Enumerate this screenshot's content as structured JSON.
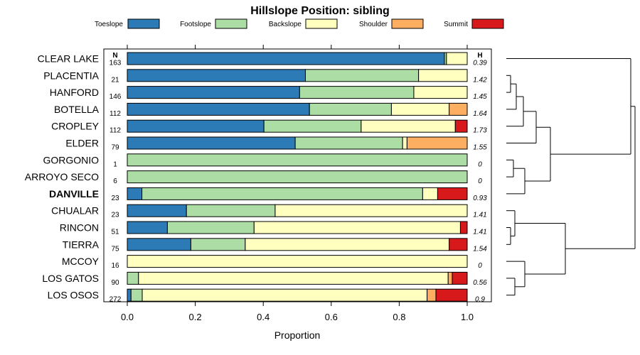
{
  "chart_data": {
    "type": "bar",
    "stacked": true,
    "orientation": "horizontal",
    "title": "Hillslope Position: sibling",
    "xlabel": "Proportion",
    "xlim": [
      0,
      1
    ],
    "x_ticks": [
      "0.0",
      "0.2",
      "0.4",
      "0.6",
      "0.8",
      "1.0"
    ],
    "n_header": "N",
    "h_header": "H",
    "highlight": "DANVILLE",
    "series": [
      {
        "name": "Toeslope",
        "color": "#2c7bb6"
      },
      {
        "name": "Footslope",
        "color": "#abdda4"
      },
      {
        "name": "Backslope",
        "color": "#ffffbf"
      },
      {
        "name": "Shoulder",
        "color": "#fdae61"
      },
      {
        "name": "Summit",
        "color": "#d7191c"
      }
    ],
    "rows": [
      {
        "label": "CLEAR LAKE",
        "n": "163",
        "h": "0.39",
        "values": [
          0.933,
          0.006,
          0.061,
          0,
          0
        ]
      },
      {
        "label": "PLACENTIA",
        "n": "21",
        "h": "1.42",
        "values": [
          0.524,
          0.333,
          0.143,
          0,
          0
        ]
      },
      {
        "label": "HANFORD",
        "n": "146",
        "h": "1.45",
        "values": [
          0.507,
          0.336,
          0.157,
          0,
          0
        ]
      },
      {
        "label": "BOTELLA",
        "n": "112",
        "h": "1.64",
        "values": [
          0.536,
          0.241,
          0.17,
          0.053,
          0
        ]
      },
      {
        "label": "CROPLEY",
        "n": "112",
        "h": "1.73",
        "values": [
          0.402,
          0.286,
          0.277,
          0,
          0.035
        ]
      },
      {
        "label": "ELDER",
        "n": "79",
        "h": "1.55",
        "values": [
          0.494,
          0.316,
          0.013,
          0.177,
          0
        ]
      },
      {
        "label": "GORGONIO",
        "n": "1",
        "h": "0",
        "values": [
          0,
          1,
          0,
          0,
          0
        ]
      },
      {
        "label": "ARROYO SECO",
        "n": "6",
        "h": "0",
        "values": [
          0,
          1,
          0,
          0,
          0
        ]
      },
      {
        "label": "DANVILLE",
        "n": "23",
        "h": "0.93",
        "values": [
          0.043,
          0.826,
          0.044,
          0,
          0.087
        ]
      },
      {
        "label": "CHUALAR",
        "n": "23",
        "h": "1.41",
        "values": [
          0.174,
          0.261,
          0.565,
          0,
          0
        ]
      },
      {
        "label": "RINCON",
        "n": "51",
        "h": "1.41",
        "values": [
          0.118,
          0.255,
          0.607,
          0,
          0.02
        ]
      },
      {
        "label": "TIERRA",
        "n": "75",
        "h": "1.54",
        "values": [
          0.187,
          0.16,
          0.6,
          0,
          0.053
        ]
      },
      {
        "label": "MCCOY",
        "n": "16",
        "h": "0",
        "values": [
          0,
          0,
          1,
          0,
          0
        ]
      },
      {
        "label": "LOS GATOS",
        "n": "90",
        "h": "0.56",
        "values": [
          0,
          0.033,
          0.911,
          0.012,
          0.044
        ]
      },
      {
        "label": "LOS OSOS",
        "n": "272",
        "h": "0.9",
        "values": [
          0.011,
          0.033,
          0.838,
          0.026,
          0.092
        ]
      }
    ]
  }
}
